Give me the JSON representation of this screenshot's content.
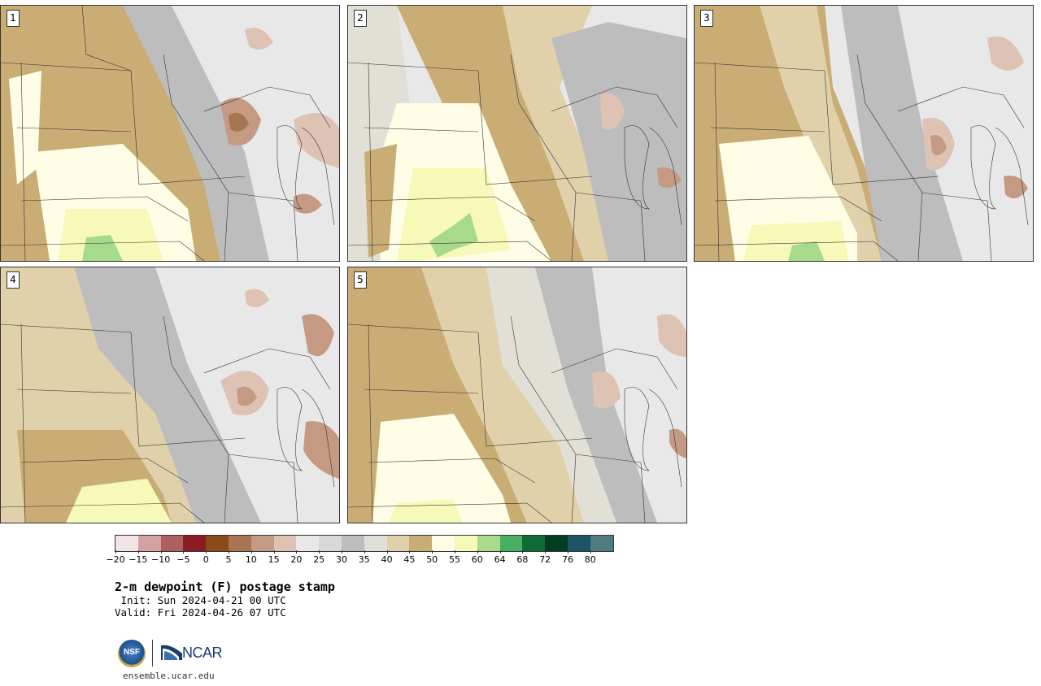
{
  "panels": [
    {
      "label": "1"
    },
    {
      "label": "2"
    },
    {
      "label": "3"
    },
    {
      "label": "4"
    },
    {
      "label": "5"
    }
  ],
  "colorbar": {
    "colors": [
      "#f2e4e4",
      "#d3a2a4",
      "#ad5f62",
      "#8c1c24",
      "#8b4a1a",
      "#a87452",
      "#c49a82",
      "#dec3b5",
      "#e8e8e8",
      "#d9d9d9",
      "#bdbdbd",
      "#e1e0d6",
      "#e1d1ab",
      "#c9ad75",
      "#fffde6",
      "#f7f9b8",
      "#a8da8c",
      "#46b060",
      "#0e6b36",
      "#033c22",
      "#1c5564",
      "#507c7f"
    ],
    "tick_labels": [
      "−20",
      "−15",
      "−10",
      "−5",
      "0",
      "5",
      "10",
      "15",
      "20",
      "25",
      "30",
      "35",
      "40",
      "45",
      "50",
      "55",
      "60",
      "64",
      "68",
      "72",
      "76",
      "80"
    ]
  },
  "title": "2-m dewpoint (F) postage stamp",
  "init_line": " Init: Sun 2024-04-21 00 UTC",
  "valid_line": "Valid: Fri 2024-04-26 07 UTC",
  "logo": {
    "nsf_text": "NSF",
    "ncar_text": "NCAR"
  },
  "website": "ensemble.ucar.edu"
}
